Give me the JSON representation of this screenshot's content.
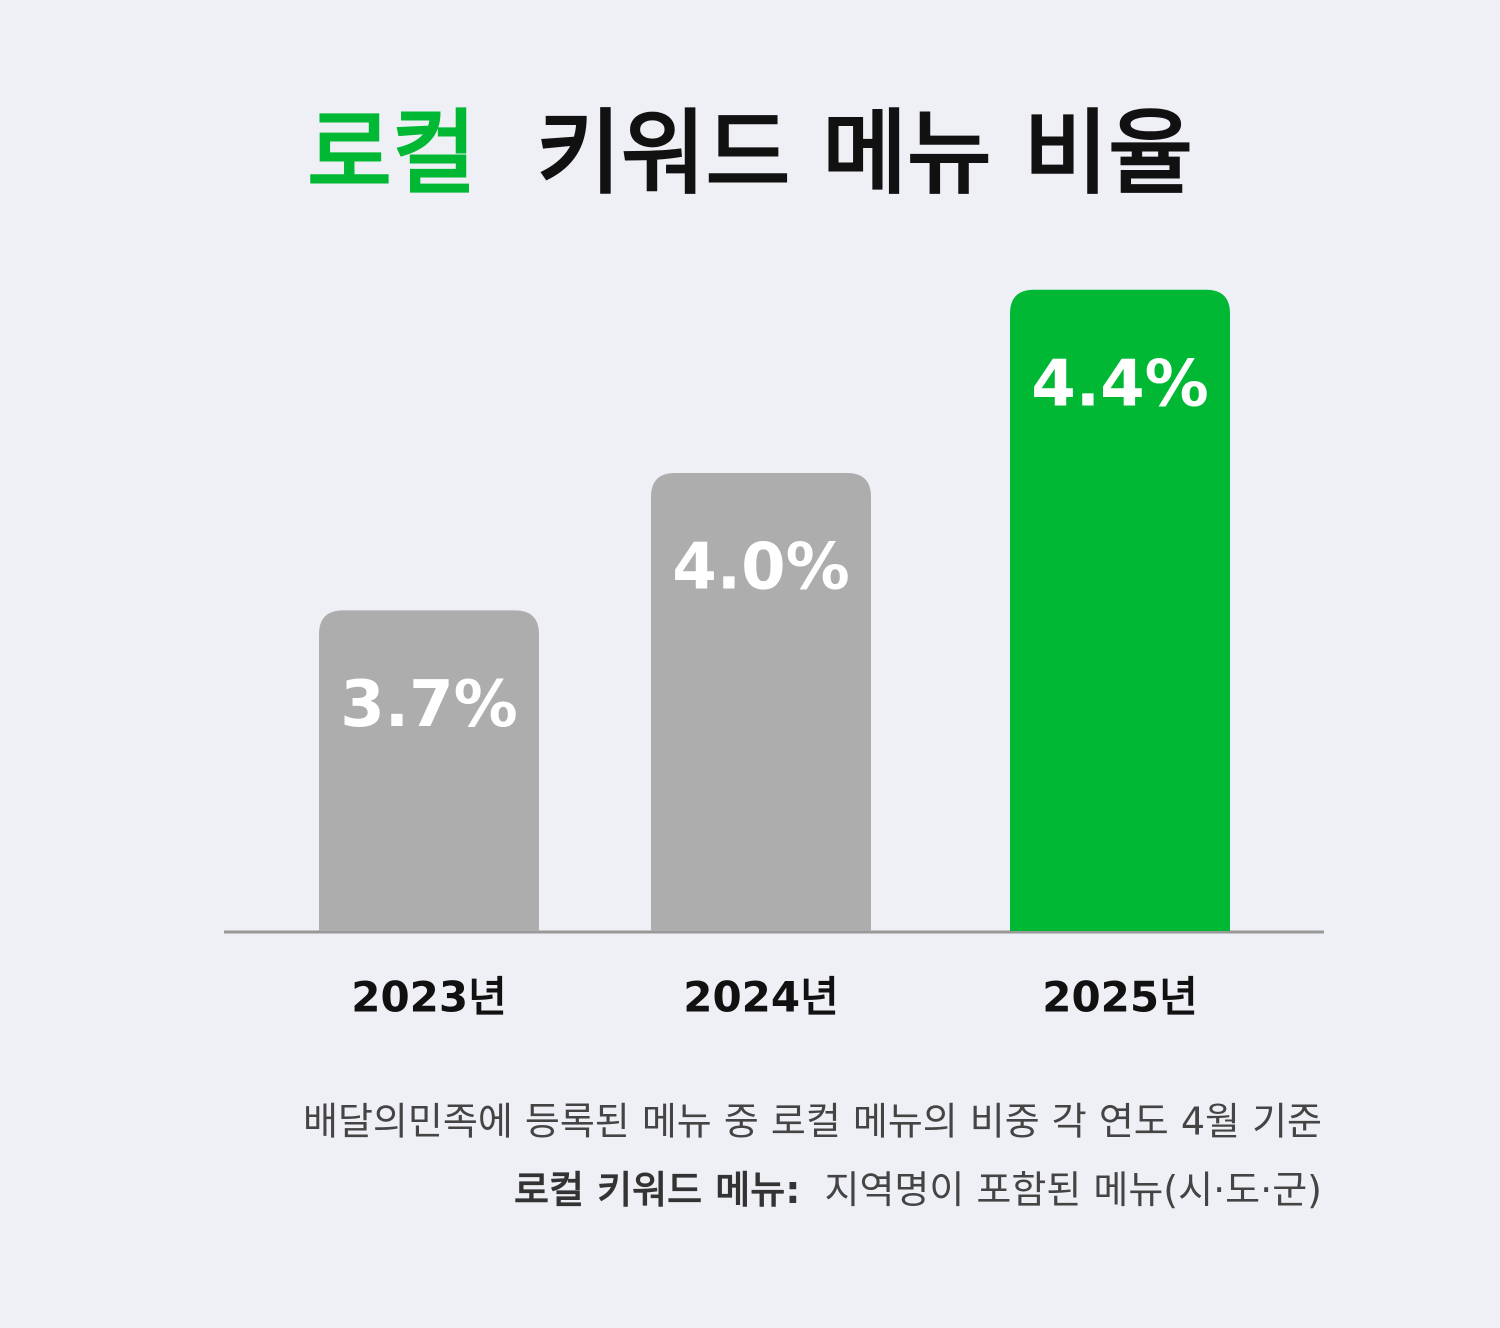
{
  "chart_data": {
    "type": "bar",
    "title_parts": [
      "로컬",
      "키워드 메뉴 비율"
    ],
    "title_colors": [
      "#00b833",
      "#111111"
    ],
    "categories": [
      "2023년",
      "2024년",
      "2025년"
    ],
    "values": [
      3.7,
      4.0,
      4.4
    ],
    "value_labels": [
      "3.7%",
      "4.0%",
      "4.4%"
    ],
    "colors": [
      "#adadad",
      "#adadad",
      "#00b833"
    ],
    "ylim": [
      3.0,
      4.5
    ],
    "notes": [
      {
        "text": "배달의민족에 등록된 메뉴 중 로컬 메뉴의 비중 각 연도 4월 기준"
      },
      {
        "bold": "로컬 키워드 메뉴:",
        "text": "지역명이 포함된 메뉴(시·도·군)"
      }
    ]
  }
}
